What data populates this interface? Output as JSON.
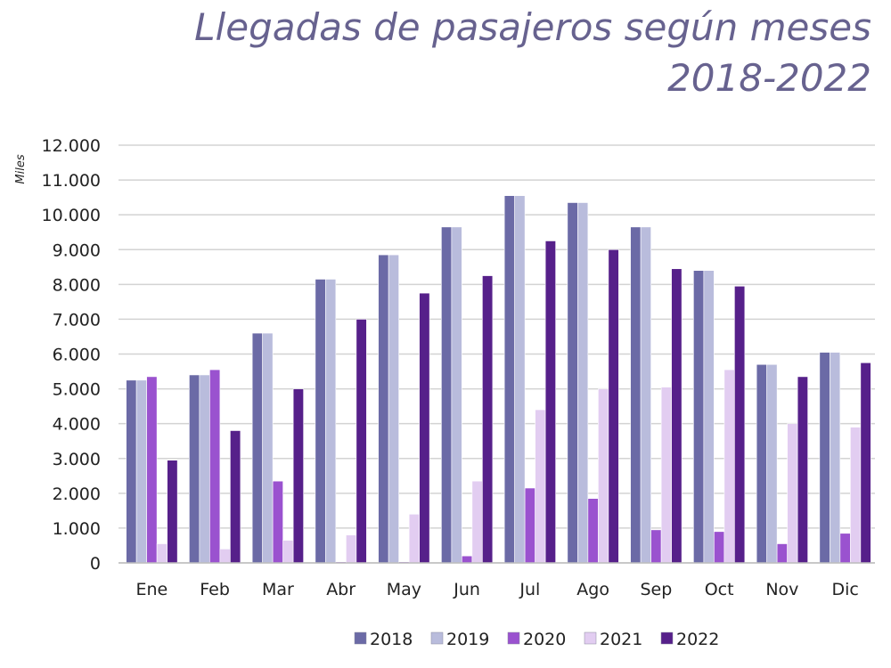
{
  "chart_data": {
    "type": "bar",
    "title": "Llegadas de pasajeros según meses",
    "subtitle": "2018-2022",
    "ylabel": "Miles",
    "xlabel": "",
    "ylim": [
      0,
      12000
    ],
    "yticks": [
      0,
      1000,
      2000,
      3000,
      4000,
      5000,
      6000,
      7000,
      8000,
      9000,
      10000,
      11000,
      12000
    ],
    "ytick_labels": [
      "0",
      "1.000",
      "2.000",
      "3.000",
      "4.000",
      "5.000",
      "6.000",
      "7.000",
      "8.000",
      "9.000",
      "10.000",
      "11.000",
      "12.000"
    ],
    "grid": true,
    "legend_position": "bottom",
    "categories": [
      "Ene",
      "Feb",
      "Mar",
      "Abr",
      "May",
      "Jun",
      "Jul",
      "Ago",
      "Sep",
      "Oct",
      "Nov",
      "Dic"
    ],
    "series": [
      {
        "name": "2018",
        "color": "#6b6aa6",
        "values": [
          5250,
          5400,
          6600,
          8150,
          8850,
          9650,
          10550,
          10350,
          9650,
          8400,
          5700,
          6050
        ]
      },
      {
        "name": "2019",
        "color": "#b9bcdc",
        "values": [
          5250,
          5400,
          6600,
          8150,
          8850,
          9650,
          10550,
          10350,
          9650,
          8400,
          5700,
          6050
        ]
      },
      {
        "name": "2020",
        "color": "#9a52cf",
        "values": [
          5350,
          5550,
          2350,
          30,
          30,
          200,
          2150,
          1850,
          950,
          900,
          550,
          850
        ]
      },
      {
        "name": "2021",
        "color": "#e2cdf1",
        "values": [
          550,
          400,
          650,
          800,
          1400,
          2350,
          4400,
          5000,
          5050,
          5550,
          4000,
          3900
        ]
      },
      {
        "name": "2022",
        "color": "#56208a",
        "values": [
          2950,
          3800,
          5000,
          7000,
          7750,
          8250,
          9250,
          9000,
          8450,
          7950,
          5350,
          5750
        ]
      }
    ]
  }
}
